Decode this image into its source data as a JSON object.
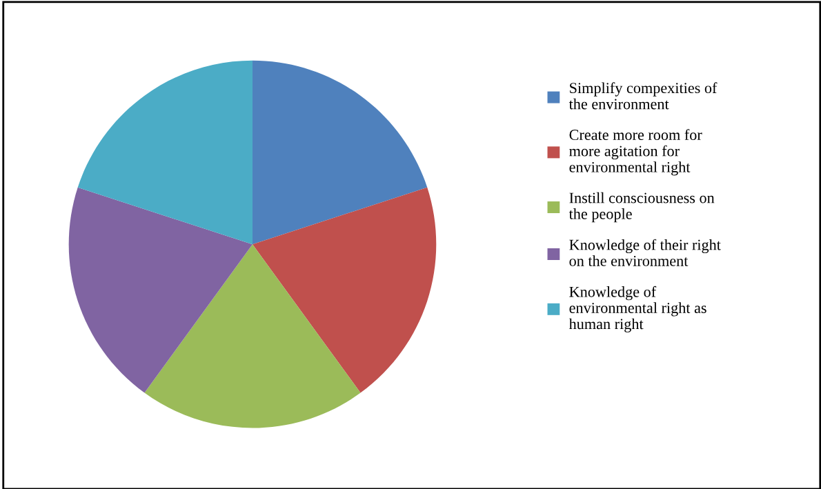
{
  "chart_data": {
    "type": "pie",
    "categories": [
      "Simplify compexities of\nthe environment",
      "Create more room for\nmore agitation for\nenvironmental right",
      "Instill consciousness on\nthe people",
      "Knowledge of their right\non the environment",
      "Knowledge of\nenvironmental right as\nhuman right"
    ],
    "values": [
      20,
      20,
      20,
      20,
      20
    ],
    "colors": [
      "#4f81bd",
      "#c0504d",
      "#9bbb59",
      "#8064a2",
      "#4bacc6"
    ],
    "legend": "right"
  }
}
